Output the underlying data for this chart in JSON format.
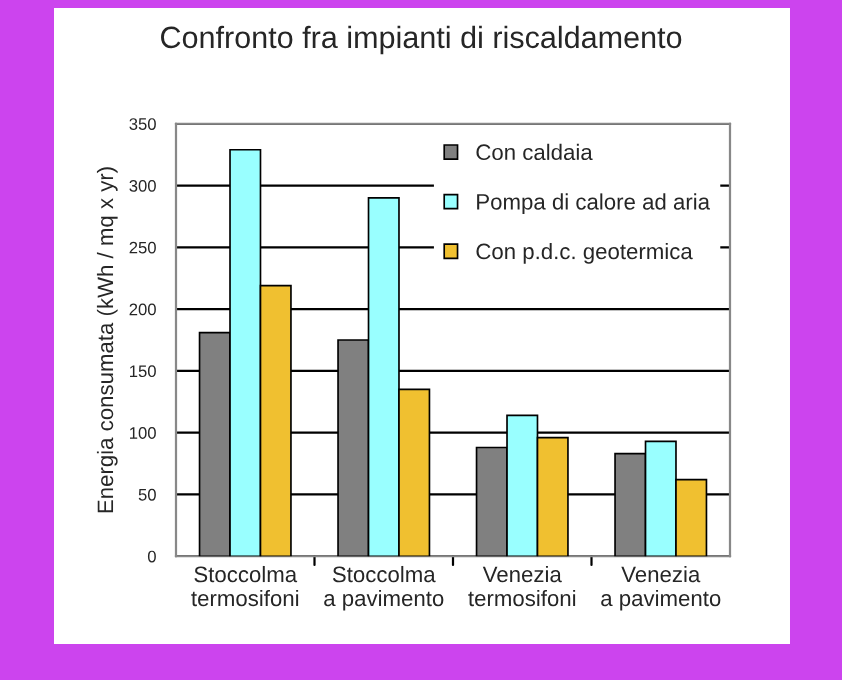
{
  "chart_data": {
    "type": "bar",
    "title": "Confronto fra impianti di riscaldamento",
    "ylabel": "Energia consumata (kWh / mq x yr)",
    "categories": [
      "Stoccolma\ntermosifoni",
      "Stoccolma\na pavimento",
      "Venezia\ntermosifoni",
      "Venezia\na pavimento"
    ],
    "series": [
      {
        "name": "Con caldaia",
        "color": "#808080",
        "values": [
          181,
          175,
          88,
          83
        ]
      },
      {
        "name": "Pompa di calore ad aria",
        "color": "#99ffff",
        "values": [
          329,
          290,
          114,
          93
        ]
      },
      {
        "name": "Con p.d.c. geotermica",
        "color": "#f0c030",
        "values": [
          219,
          135,
          96,
          62
        ]
      }
    ],
    "ylim": [
      0,
      350
    ],
    "yticks": [
      0,
      50,
      100,
      150,
      200,
      250,
      300,
      350
    ],
    "grid": "y",
    "legend": "top right"
  }
}
